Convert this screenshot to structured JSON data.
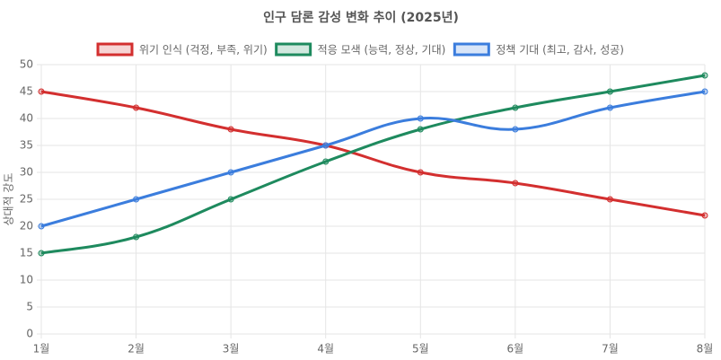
{
  "chart_data": {
    "type": "line",
    "title": "인구 담론 감성 변화 추이 (2025년)",
    "y_label": "상대적 강도",
    "categories": [
      "1월",
      "2월",
      "3월",
      "4월",
      "5월",
      "6월",
      "7월",
      "8월"
    ],
    "series": [
      {
        "name": "위기 인식 (걱정, 부족, 위기)",
        "color": "#d32f2f",
        "values": [
          45,
          42,
          38,
          35,
          30,
          28,
          25,
          22
        ]
      },
      {
        "name": "적응 모색 (능력, 정상, 기대)",
        "color": "#1e8a5e",
        "values": [
          15,
          18,
          25,
          32,
          38,
          42,
          45,
          48
        ]
      },
      {
        "name": "정책 기대 (최고, 감사, 성공)",
        "color": "#3b7ddd",
        "values": [
          20,
          25,
          30,
          35,
          40,
          38,
          42,
          45
        ]
      }
    ],
    "ylim": [
      0,
      50
    ],
    "yticks": [
      0,
      5,
      10,
      15,
      20,
      25,
      30,
      35,
      40,
      45,
      50
    ],
    "grid": true,
    "legend": "top"
  }
}
